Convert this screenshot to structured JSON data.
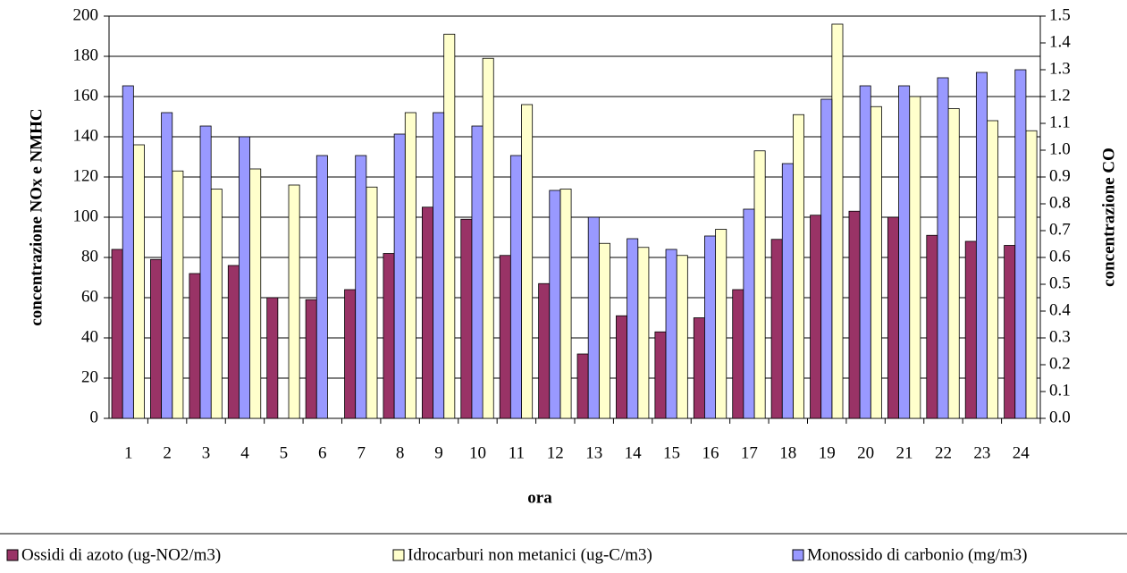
{
  "chart_data": {
    "type": "bar",
    "xlabel": "ora",
    "ylabel": "concentrazione NOx e NMHC",
    "y2label": "concentrazione CO",
    "categories": [
      "1",
      "2",
      "3",
      "4",
      "5",
      "6",
      "7",
      "8",
      "9",
      "10",
      "11",
      "12",
      "13",
      "14",
      "15",
      "16",
      "17",
      "18",
      "19",
      "20",
      "21",
      "22",
      "23",
      "24"
    ],
    "series": [
      {
        "name": "Ossidi di azoto (ug-NO2/m3)",
        "color": "#993366",
        "values": [
          84,
          79,
          72,
          76,
          60,
          59,
          64,
          82,
          105,
          99,
          81,
          67,
          32,
          51,
          43,
          50,
          64,
          89,
          101,
          103,
          100,
          91,
          88,
          86
        ]
      },
      {
        "name": "Idrocarburi non metanici (ug-C/m3)",
        "color": "#ffffcc",
        "values": [
          136,
          123,
          114,
          124,
          116,
          null,
          115,
          152,
          191,
          179,
          156,
          114,
          87,
          85,
          81,
          94,
          133,
          151,
          196,
          155,
          160,
          154,
          148,
          143
        ]
      },
      {
        "name": "Monossido di carbonio (mg/m3)",
        "color": "#9999ff",
        "axis": "y2",
        "values": [
          1.24,
          1.14,
          1.09,
          1.05,
          null,
          0.98,
          0.98,
          1.06,
          1.14,
          1.09,
          0.98,
          0.85,
          0.75,
          0.67,
          0.63,
          0.68,
          0.78,
          0.95,
          1.19,
          1.24,
          1.24,
          1.27,
          1.29,
          1.3
        ]
      }
    ],
    "ylim": [
      0,
      200
    ],
    "yticks": [
      0,
      20,
      40,
      60,
      80,
      100,
      120,
      140,
      160,
      180,
      200
    ],
    "y2lim": [
      0,
      1.5
    ],
    "y2ticks": [
      {
        "value": 0,
        "label": "0.0"
      },
      0.1,
      0.2,
      0.3,
      0.4,
      0.5,
      0.6,
      0.7,
      0.8,
      0.9,
      {
        "value": 1,
        "label": "1.0"
      },
      1.1,
      1.2,
      1.3,
      1.4,
      1.5
    ],
    "grid": true,
    "legend": "bottom"
  }
}
